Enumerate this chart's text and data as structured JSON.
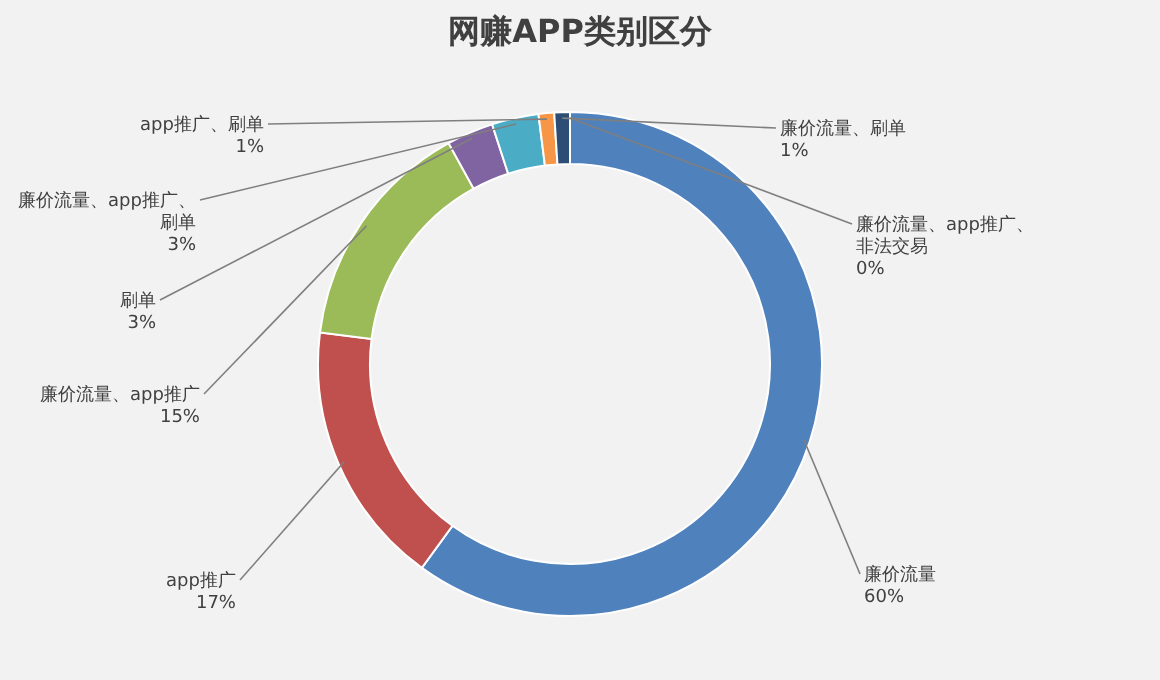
{
  "chart_data": {
    "type": "donut",
    "title": "网赚APP类别区分",
    "categories": [
      "廉价流量",
      "app推广",
      "廉价流量、app推广",
      "刷单",
      "廉价流量、app推广、刷单",
      "app推广、刷单",
      "廉价流量、刷单",
      "廉价流量、app推广、非法交易"
    ],
    "values": [
      60,
      17,
      15,
      3,
      3,
      1,
      1,
      0
    ],
    "value_labels": [
      "60%",
      "17%",
      "15%",
      "3%",
      "3%",
      "1%",
      "1%",
      "0%"
    ],
    "colors": [
      "#4f81bd",
      "#c0504d",
      "#9bbb59",
      "#8064a2",
      "#4bacc6",
      "#f79646",
      "#2c4d75",
      "#772c2a"
    ]
  }
}
